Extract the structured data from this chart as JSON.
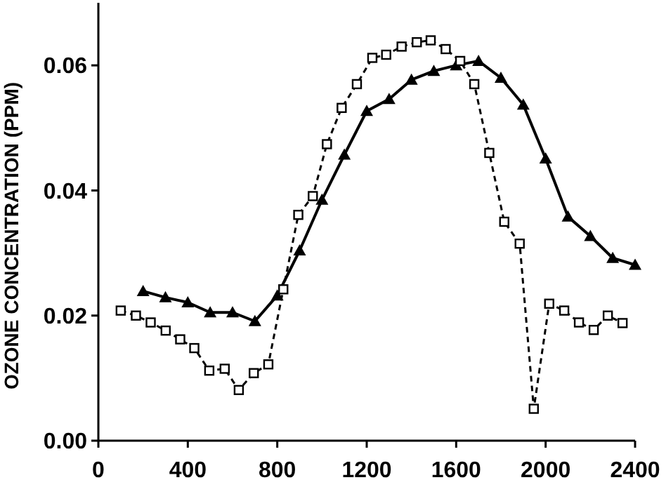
{
  "chart_data": {
    "type": "line",
    "ylabel": "OZONE CONCENTRATION (PPM)",
    "xlim": [
      0,
      2400
    ],
    "xticks": [
      0,
      400,
      800,
      1200,
      1600,
      2000,
      2400
    ],
    "ylim": [
      0,
      0.07
    ],
    "yticks": [
      {
        "value": 0,
        "label": "0.00"
      },
      {
        "value": 0.02,
        "label": "0.02"
      },
      {
        "value": 0.04,
        "label": "0.04"
      },
      {
        "value": 0.06,
        "label": "0.06"
      }
    ],
    "grid": false,
    "series": [
      {
        "color": "#000000",
        "marker": "triangle",
        "line_style": "solid",
        "x": [
          200,
          300,
          400,
          500,
          600,
          700,
          800,
          900,
          1000,
          1100,
          1200,
          1300,
          1400,
          1500,
          1600,
          1700,
          1800,
          1900,
          2000,
          2100,
          2200,
          2300,
          2400
        ],
        "values": [
          0.0239,
          0.0229,
          0.0221,
          0.0205,
          0.0205,
          0.0191,
          0.0232,
          0.0304,
          0.0385,
          0.0457,
          0.0527,
          0.0546,
          0.0577,
          0.0591,
          0.06,
          0.0607,
          0.058,
          0.0537,
          0.0451,
          0.0358,
          0.0327,
          0.0292,
          0.0281
        ]
      },
      {
        "color": "#000000",
        "marker": "square",
        "line_style": "dashed",
        "x": [
          100,
          168,
          234,
          301,
          366,
          429,
          496,
          565,
          628,
          695,
          760,
          827,
          894,
          959,
          1022,
          1088,
          1156,
          1225,
          1287,
          1356,
          1424,
          1486,
          1553,
          1618,
          1681,
          1748,
          1815,
          1884,
          1947,
          2016,
          2083,
          2149,
          2215,
          2278,
          2344
        ],
        "values": [
          0.0208,
          0.02,
          0.0189,
          0.0176,
          0.0162,
          0.0148,
          0.0112,
          0.0115,
          0.0081,
          0.0108,
          0.0122,
          0.0242,
          0.0361,
          0.0391,
          0.0474,
          0.0532,
          0.057,
          0.0612,
          0.0617,
          0.063,
          0.0637,
          0.064,
          0.0626,
          0.0607,
          0.057,
          0.046,
          0.035,
          0.0315,
          0.0051,
          0.0219,
          0.0208,
          0.0189,
          0.0177,
          0.02,
          0.0188
        ]
      }
    ]
  }
}
